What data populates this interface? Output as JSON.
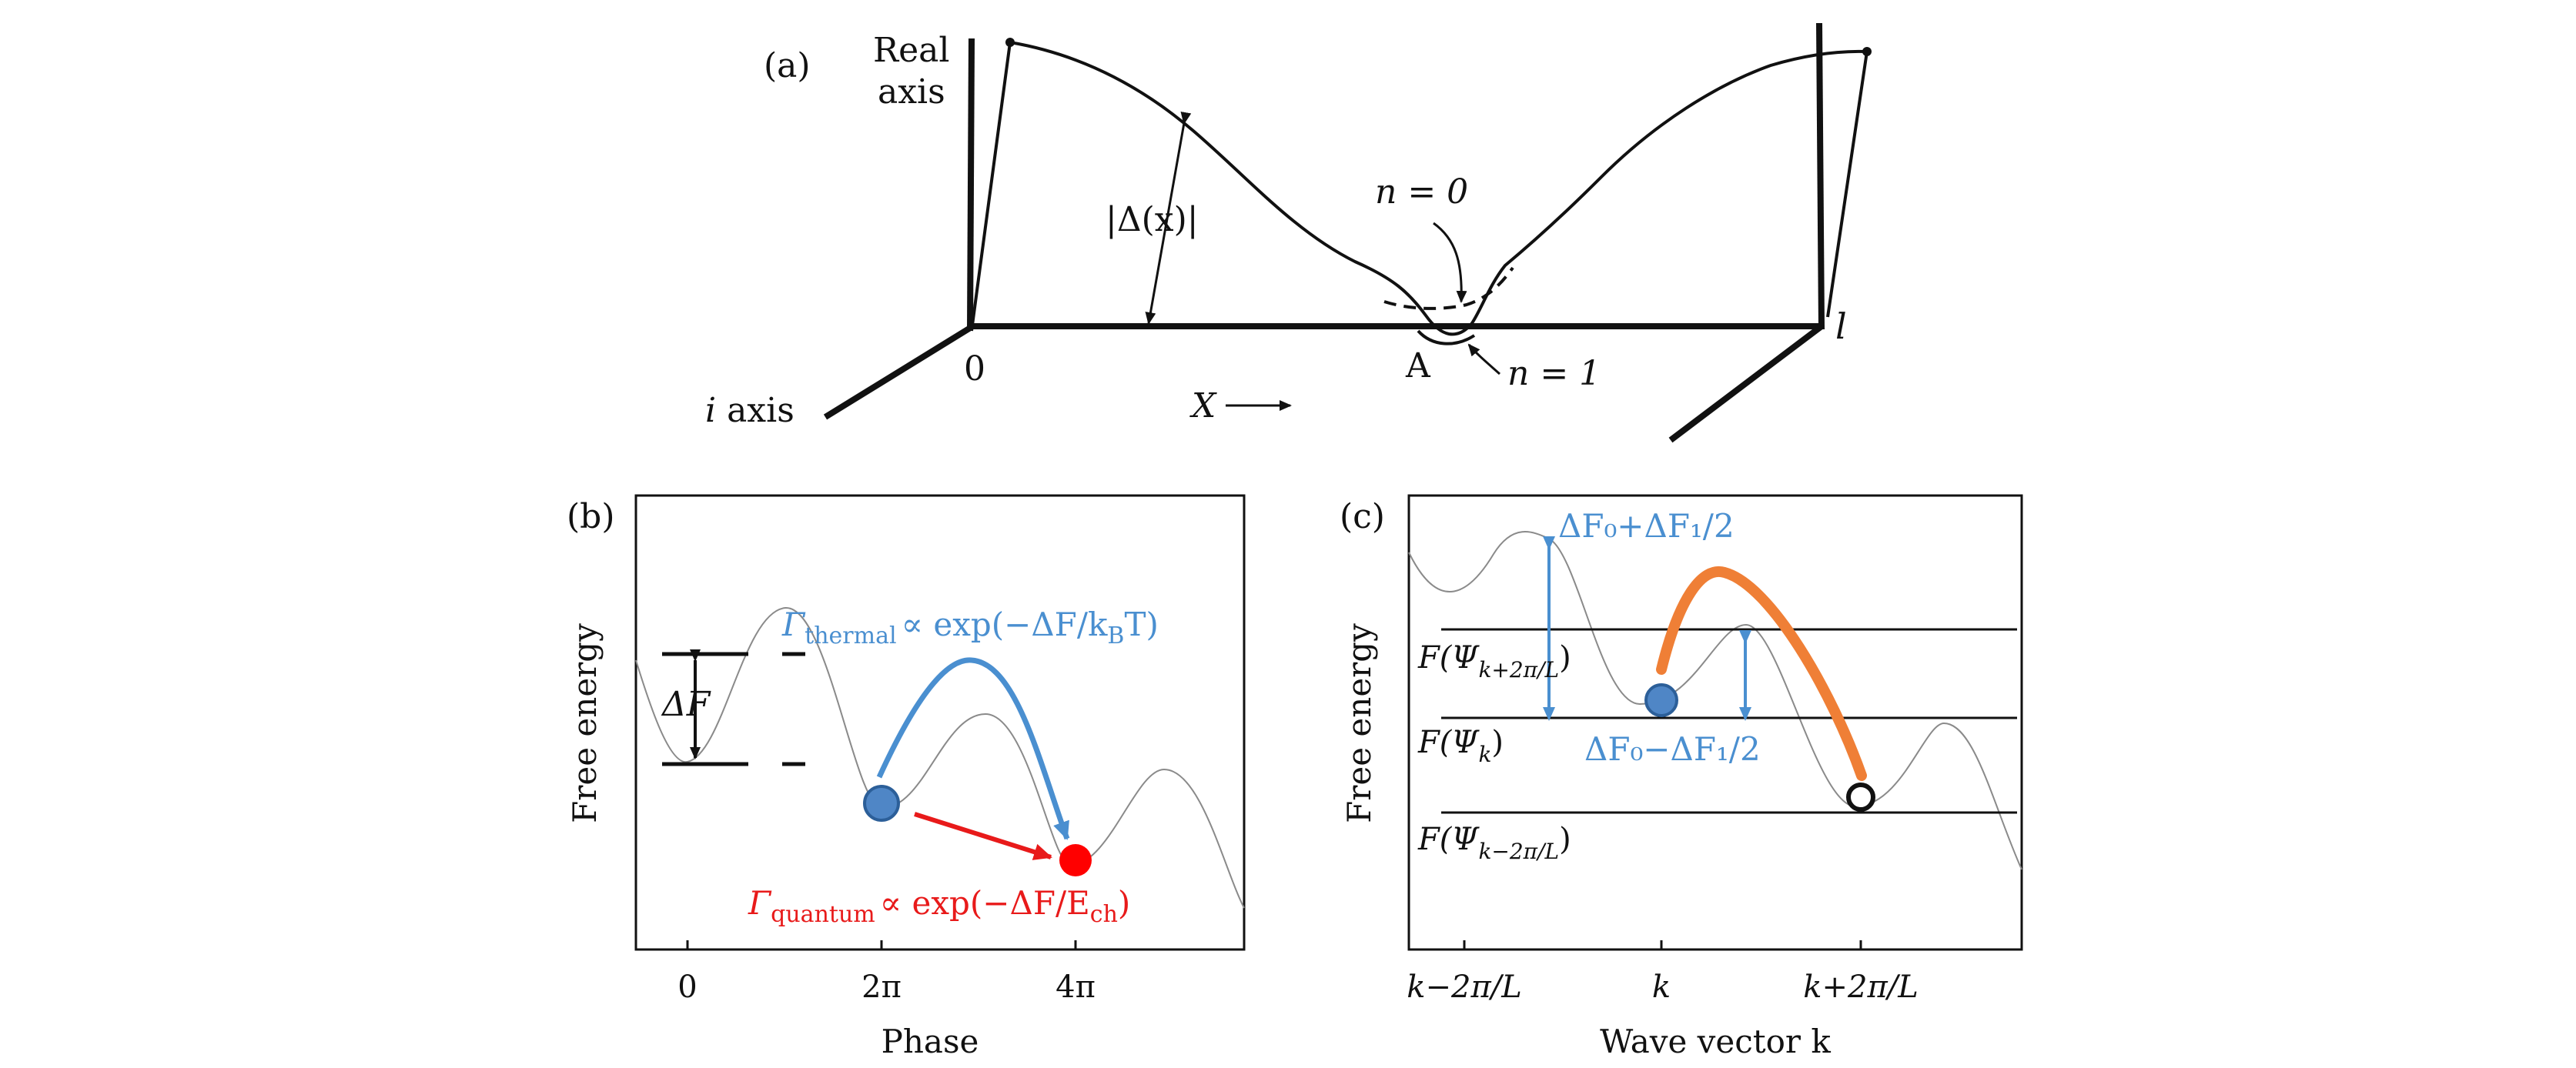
{
  "colors": {
    "ink": "#111111",
    "thermal_blue": "#4a8fd0",
    "ball_blue": "#4f86c6",
    "quantum_red": "#e81a1a",
    "path_orange": "#ef7f36",
    "gray_curve": "#8a8a8a"
  },
  "panel_a": {
    "label": "(a)",
    "real_axis_1": "Real",
    "real_axis_2": "axis",
    "i_axis_i": "i",
    "i_axis_rest": "axis",
    "origin": "0",
    "end_label": "l",
    "x_label": "X",
    "delta_label": "|Δ(x)|",
    "n0_label": "n = 0",
    "n1_label": "n = 1",
    "point_A": "A"
  },
  "panel_b": {
    "label": "(b)",
    "ylabel": "Free energy",
    "xlabel": "Phase",
    "xticks": [
      "0",
      "2π",
      "4π"
    ],
    "delta_f": "ΔF",
    "thermal_gamma": "Γ",
    "thermal_sub": "thermal",
    "thermal_expr": "∝ exp(−ΔF/k",
    "thermal_kb_sub": "B",
    "thermal_tail": "T)",
    "quantum_gamma": "Γ",
    "quantum_sub": "quantum",
    "quantum_expr": "∝ exp(−ΔF/E",
    "quantum_e_sub": "ch",
    "quantum_tail": ")"
  },
  "panel_c": {
    "label": "(c)",
    "ylabel": "Free energy",
    "xlabel": "Wave vector k",
    "xticks": [
      "k−2π/L",
      "k",
      "k+2π/L"
    ],
    "upper_gap": "ΔF₀+ΔF₁/2",
    "lower_gap": "ΔF₀−ΔF₁/2",
    "level_top_main": "F(Ψ",
    "level_top_sub": "k+2π/L",
    "level_top_tail": ")",
    "level_mid_main": "F(Ψ",
    "level_mid_sub": "k",
    "level_mid_tail": ")",
    "level_bot_main": "F(Ψ",
    "level_bot_sub": "k−2π/L",
    "level_bot_tail": ")"
  }
}
